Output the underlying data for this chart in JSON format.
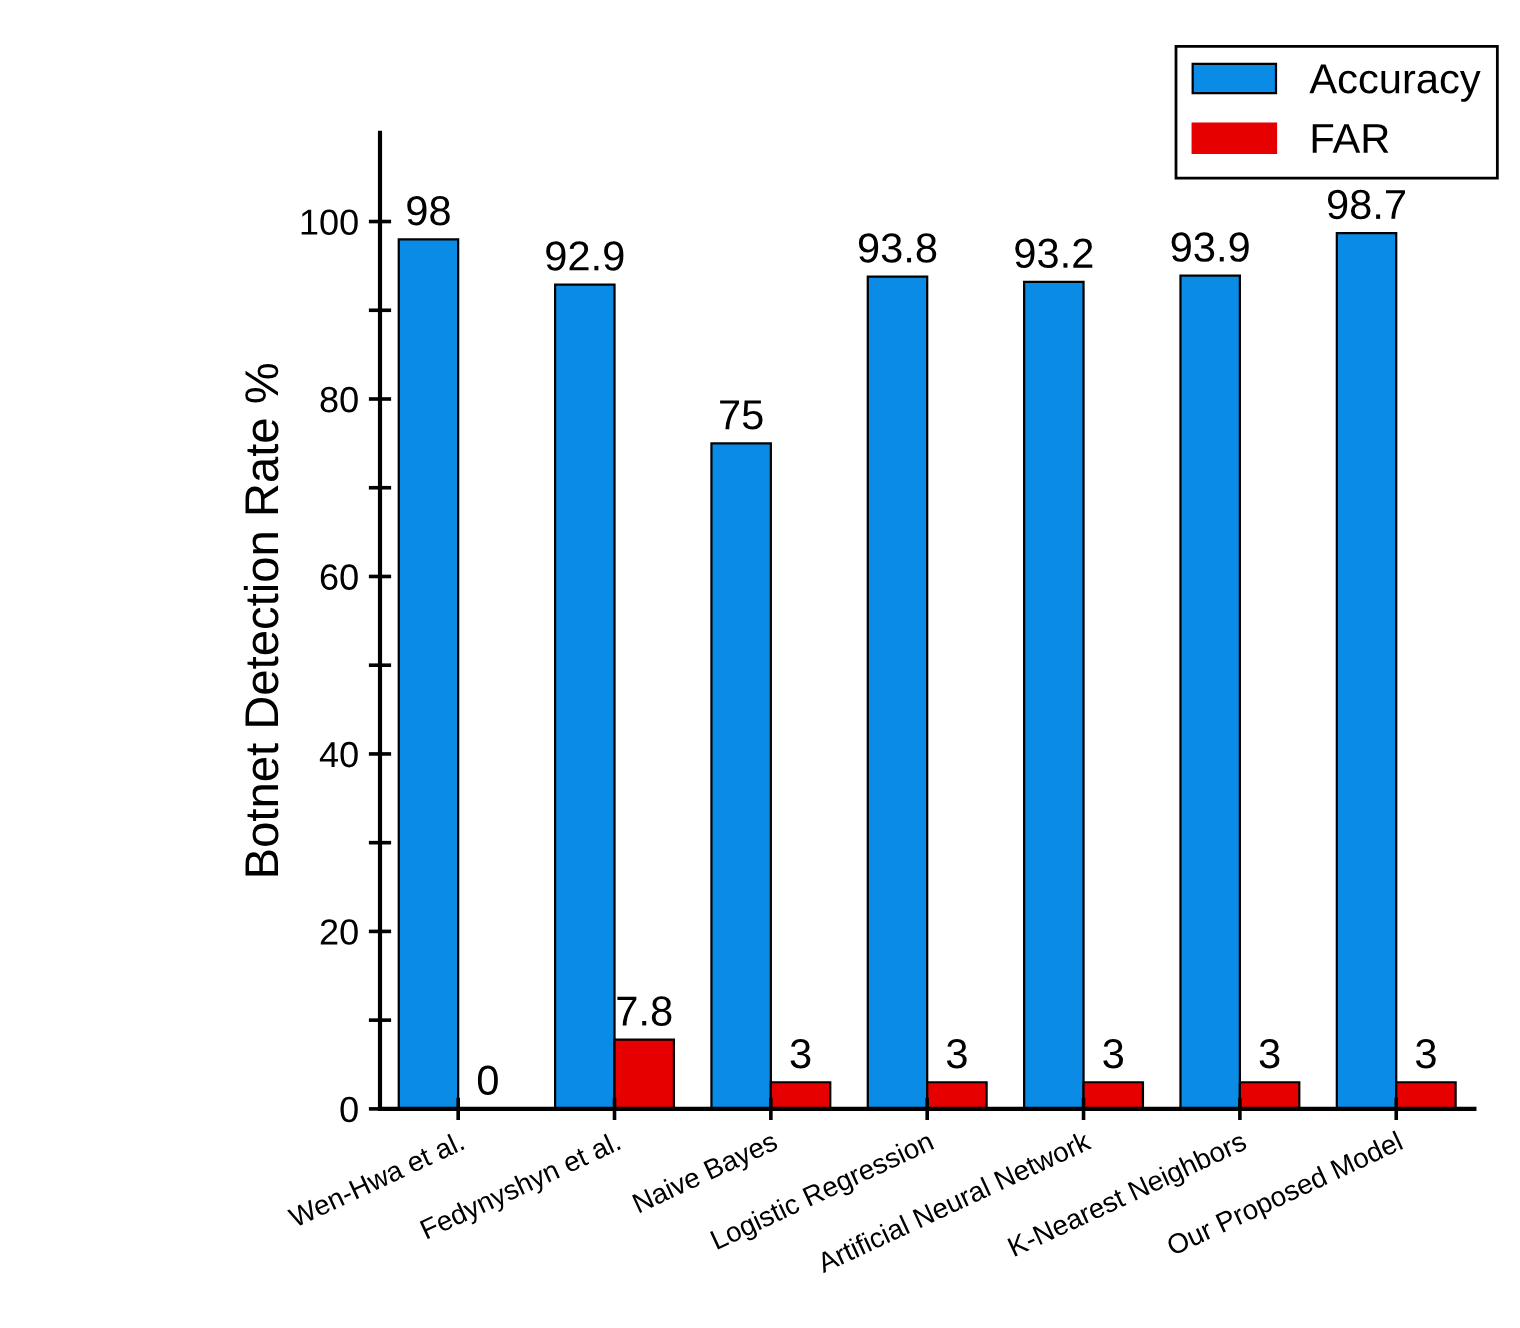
{
  "chart_data": {
    "type": "bar",
    "ylabel": "Botnet Detection Rate %",
    "categories": [
      "Wen-Hwa et al.",
      "Fedynyshyn et al.",
      "Naive Bayes",
      "Logistic Regression",
      "Artificial Neural Network",
      "K-Nearest Neighbors",
      "Our Proposed Model"
    ],
    "series": [
      {
        "name": "Accuracy",
        "color": "#0a8ce6",
        "values": [
          98,
          92.9,
          75,
          93.8,
          93.2,
          93.9,
          98.7
        ]
      },
      {
        "name": "FAR",
        "color": "#e60000",
        "values": [
          0,
          7.8,
          3,
          3,
          3,
          3,
          3
        ]
      }
    ],
    "ylim": [
      0,
      110
    ],
    "yticks": [
      0,
      {
        "value": 10,
        "label": null
      },
      20,
      {
        "value": 30,
        "label": null
      },
      40,
      {
        "value": 50,
        "label": null
      },
      60,
      {
        "value": 70,
        "label": null
      },
      80,
      {
        "value": 90,
        "label": null
      },
      100
    ],
    "data_labels": true,
    "legend": "top right",
    "grid": false
  }
}
